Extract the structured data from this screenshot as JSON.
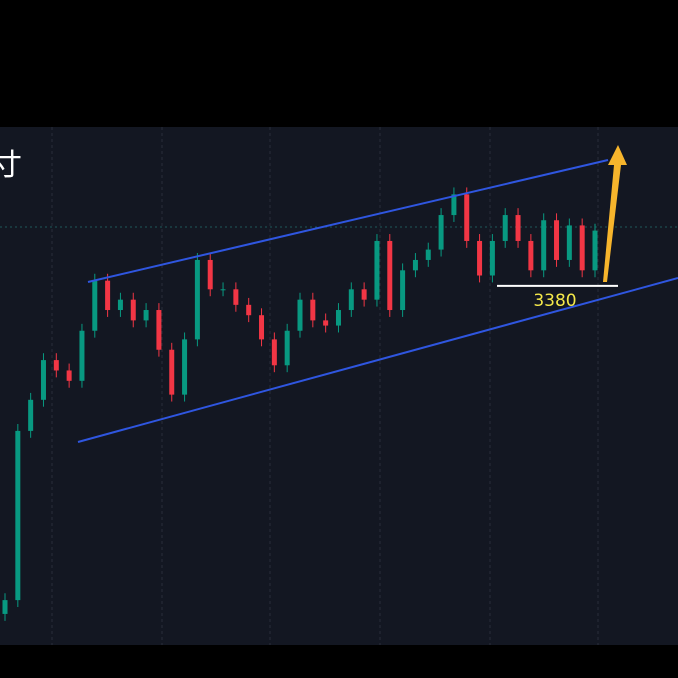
{
  "chart_data": {
    "type": "candlestick",
    "title": "寸",
    "ylim": [
      3172,
      3472
    ],
    "up_color": "#089981",
    "down_color": "#f23645",
    "level": {
      "value": 3380,
      "label": "3380"
    },
    "open": [
      3190,
      3198,
      3296,
      3314,
      3337,
      3331,
      3325,
      3354,
      3383,
      3366,
      3372,
      3360,
      3366,
      3343,
      3317,
      3349,
      3395,
      3378,
      3378,
      3369,
      3363,
      3349,
      3334,
      3354,
      3372,
      3360,
      3357,
      3366,
      3378,
      3372,
      3406,
      3366,
      3389,
      3395,
      3401,
      3421,
      3433,
      3406,
      3386,
      3406,
      3421,
      3406,
      3389,
      3418,
      3395,
      3415,
      3389
    ],
    "high": [
      3202,
      3300,
      3318,
      3341,
      3341,
      3335,
      3358,
      3387,
      3387,
      3376,
      3376,
      3370,
      3370,
      3347,
      3353,
      3399,
      3399,
      3382,
      3382,
      3373,
      3367,
      3353,
      3358,
      3376,
      3376,
      3364,
      3370,
      3382,
      3382,
      3410,
      3410,
      3393,
      3399,
      3405,
      3425,
      3437,
      3437,
      3410,
      3410,
      3425,
      3425,
      3410,
      3422,
      3422,
      3419,
      3419,
      3416
    ],
    "low": [
      3186,
      3194,
      3292,
      3310,
      3327,
      3321,
      3321,
      3350,
      3362,
      3362,
      3356,
      3356,
      3339,
      3313,
      3313,
      3345,
      3374,
      3374,
      3365,
      3359,
      3345,
      3330,
      3330,
      3350,
      3356,
      3353,
      3353,
      3362,
      3368,
      3368,
      3362,
      3362,
      3385,
      3391,
      3397,
      3417,
      3402,
      3382,
      3382,
      3402,
      3402,
      3385,
      3385,
      3391,
      3391,
      3385,
      3385
    ],
    "close": [
      3198,
      3296,
      3314,
      3337,
      3331,
      3325,
      3354,
      3383,
      3366,
      3372,
      3360,
      3366,
      3343,
      3317,
      3349,
      3395,
      3378,
      3378,
      3369,
      3363,
      3349,
      3334,
      3354,
      3372,
      3360,
      3357,
      3366,
      3378,
      3372,
      3406,
      3366,
      3389,
      3395,
      3401,
      3421,
      3433,
      3406,
      3386,
      3406,
      3421,
      3406,
      3389,
      3418,
      3395,
      3415,
      3389,
      3412
    ]
  }
}
